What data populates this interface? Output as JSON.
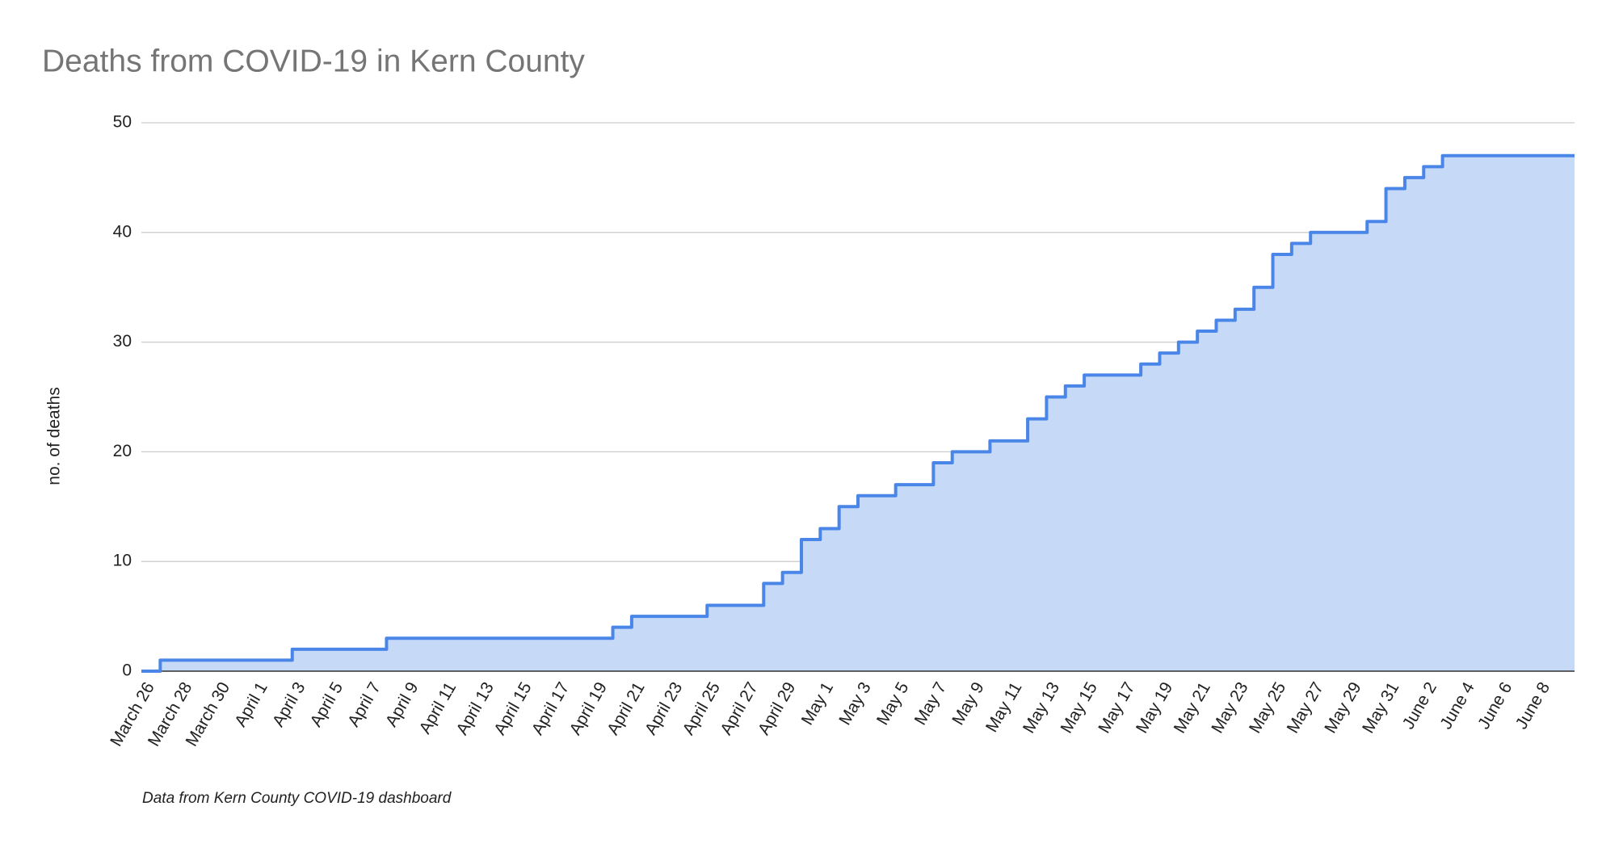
{
  "chart_data": {
    "type": "area",
    "stepped": true,
    "title": "Deaths from COVID-19 in Kern County",
    "y_label": "no. of deaths",
    "note": "Data from Kern County COVID-19 dashboard",
    "categories": [
      "March 26",
      null,
      "March 28",
      null,
      "March 30",
      null,
      "April 1",
      null,
      "April 3",
      null,
      "April 5",
      null,
      "April 7",
      null,
      "April 9",
      null,
      "April 11",
      null,
      "April 13",
      null,
      "April 15",
      null,
      "April 17",
      null,
      "April 19",
      null,
      "April 21",
      null,
      "April 23",
      null,
      "April 25",
      null,
      "April 27",
      null,
      "April 29",
      null,
      "May 1",
      null,
      "May 3",
      null,
      "May 5",
      null,
      "May 7",
      null,
      "May 9",
      null,
      "May 11",
      null,
      "May 13",
      null,
      "May 15",
      null,
      "May 17",
      null,
      "May 19",
      null,
      "May 21",
      null,
      "May 23",
      null,
      "May 25",
      null,
      "May 27",
      null,
      "May 29",
      null,
      "May 31",
      null,
      "June 2",
      null,
      "June 4",
      null,
      "June 6",
      null,
      "June 8",
      null
    ],
    "values": [
      0,
      1,
      1,
      1,
      1,
      1,
      1,
      1,
      2,
      2,
      2,
      2,
      2,
      3,
      3,
      3,
      3,
      3,
      3,
      3,
      3,
      3,
      3,
      3,
      3,
      4,
      5,
      5,
      5,
      5,
      6,
      6,
      6,
      8,
      9,
      12,
      13,
      15,
      16,
      16,
      17,
      17,
      19,
      20,
      20,
      21,
      21,
      23,
      25,
      26,
      27,
      27,
      27,
      28,
      29,
      30,
      31,
      32,
      33,
      35,
      38,
      39,
      40,
      40,
      40,
      41,
      44,
      45,
      46,
      47,
      47,
      47,
      47,
      47,
      47,
      47
    ],
    "color": "#4a86e8",
    "fill": "#c6daf8",
    "ylim": [
      0,
      50
    ],
    "yticks": [
      0,
      10,
      20,
      30,
      40,
      50
    ],
    "grid": true
  }
}
